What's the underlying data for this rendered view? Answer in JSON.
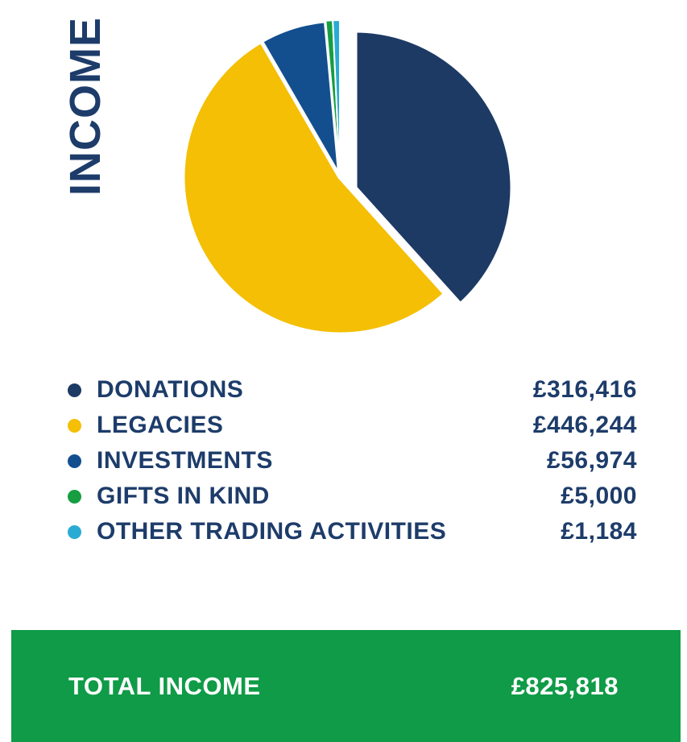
{
  "title": "INCOME",
  "chart_data": {
    "type": "pie",
    "title": "INCOME",
    "categories": [
      "DONATIONS",
      "LEGACIES",
      "INVESTMENTS",
      "GIFTS IN KIND",
      "OTHER TRADING ACTIVITIES"
    ],
    "values": [
      316416,
      446244,
      56974,
      5000,
      1184
    ],
    "colors": [
      "#1d3a64",
      "#f4bf04",
      "#134f8e",
      "#169e41",
      "#29abd4"
    ],
    "total": 825818,
    "start_angle_deg": 0,
    "direction": "clockwise",
    "exploded_slice": "DONATIONS",
    "legend_position": "bottom",
    "currency": "GBP"
  },
  "legend": {
    "items": [
      {
        "label": "DONATIONS",
        "value": "£316,416",
        "color": "#1d3a64"
      },
      {
        "label": "LEGACIES",
        "value": "£446,244",
        "color": "#f4bf04"
      },
      {
        "label": "INVESTMENTS",
        "value": "£56,974",
        "color": "#134f8e"
      },
      {
        "label": "GIFTS IN KIND",
        "value": "£5,000",
        "color": "#169e41"
      },
      {
        "label": "OTHER TRADING ACTIVITIES",
        "value": "£1,184",
        "color": "#29abd4"
      }
    ]
  },
  "total_banner": {
    "label": "TOTAL INCOME",
    "value": "£825,818",
    "background": "#0f9b47"
  }
}
